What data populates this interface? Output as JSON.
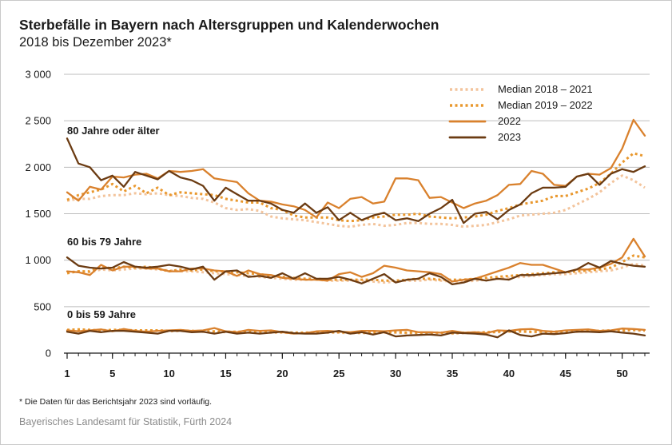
{
  "header": {
    "title": "Sterbefälle in Bayern nach Altersgruppen und Kalenderwochen",
    "subtitle": "2018 bis Dezember 2023*"
  },
  "footer": {
    "footnote": "* Die Daten für das Berichtsjahr 2023 sind vorläufig.",
    "source": "Bayerisches Landesamt für Statistik, Fürth 2024"
  },
  "colors": {
    "median_2018_2021": "#f3c49c",
    "median_2019_2022": "#e9982e",
    "y2022": "#d9812d",
    "y2023": "#6b3b12",
    "grid": "#bdbdbd",
    "axis": "#1a1a1a"
  },
  "chart_data": {
    "type": "line",
    "title": "Sterbefälle in Bayern nach Altersgruppen und Kalenderwochen",
    "subtitle": "2018 bis Dezember 2023*",
    "xlabel": "",
    "ylabel": "",
    "xlim": [
      1,
      52
    ],
    "ylim": [
      0,
      3000
    ],
    "x_tick_labels": [
      "1",
      "5",
      "10",
      "15",
      "20",
      "25",
      "30",
      "35",
      "40",
      "45",
      "50"
    ],
    "y_tick_labels": [
      "0",
      "500",
      "1 000",
      "1 500",
      "2 000",
      "2 500",
      "3 000"
    ],
    "grid": true,
    "legend_position": "top-right",
    "legend": [
      "Median 2018 – 2021",
      "Median 2019 – 2022",
      "2022",
      "2023"
    ],
    "groups": [
      {
        "label": "80 Jahre oder älter",
        "series": [
          {
            "name": "Median 2018 – 2021",
            "style": "dotted-light",
            "values": [
              1640,
              1660,
              1660,
              1690,
              1700,
              1700,
              1720,
              1710,
              1720,
              1700,
              1690,
              1670,
              1660,
              1620,
              1560,
              1540,
              1550,
              1530,
              1470,
              1450,
              1440,
              1430,
              1410,
              1390,
              1370,
              1360,
              1380,
              1390,
              1370,
              1380,
              1400,
              1400,
              1390,
              1390,
              1380,
              1360,
              1370,
              1380,
              1410,
              1440,
              1480,
              1490,
              1500,
              1510,
              1540,
              1600,
              1660,
              1730,
              1830,
              1910,
              1860,
              1780
            ]
          },
          {
            "name": "Median 2019 – 2022",
            "style": "dotted",
            "values": [
              1650,
              1700,
              1730,
              1760,
              1820,
              1740,
              1800,
              1720,
              1780,
              1700,
              1730,
              1720,
              1710,
              1700,
              1660,
              1640,
              1620,
              1620,
              1560,
              1540,
              1480,
              1460,
              1460,
              1460,
              1430,
              1420,
              1430,
              1460,
              1470,
              1490,
              1490,
              1500,
              1470,
              1460,
              1450,
              1460,
              1470,
              1490,
              1530,
              1560,
              1600,
              1620,
              1640,
              1690,
              1690,
              1730,
              1770,
              1830,
              1930,
              2050,
              2150,
              2120
            ]
          },
          {
            "name": "2022",
            "style": "solid",
            "values": [
              1730,
              1640,
              1790,
              1760,
              1900,
              1890,
              1920,
              1930,
              1880,
              1960,
              1950,
              1960,
              1980,
              1880,
              1860,
              1840,
              1720,
              1640,
              1630,
              1600,
              1580,
              1540,
              1460,
              1620,
              1560,
              1660,
              1680,
              1610,
              1630,
              1880,
              1880,
              1860,
              1670,
              1680,
              1620,
              1560,
              1610,
              1640,
              1700,
              1810,
              1820,
              1960,
              1930,
              1810,
              1800,
              1900,
              1930,
              1920,
              1990,
              2200,
              2510,
              2340
            ]
          },
          {
            "name": "2023",
            "style": "solid-dark",
            "values": [
              2310,
              2040,
              2000,
              1860,
              1910,
              1790,
              1950,
              1910,
              1870,
              1960,
              1890,
              1860,
              1800,
              1640,
              1780,
              1710,
              1640,
              1640,
              1610,
              1540,
              1510,
              1610,
              1510,
              1570,
              1430,
              1510,
              1430,
              1480,
              1510,
              1430,
              1450,
              1420,
              1500,
              1560,
              1650,
              1400,
              1500,
              1520,
              1440,
              1540,
              1600,
              1720,
              1780,
              1780,
              1790,
              1900,
              1930,
              1810,
              1930,
              1980,
              1950,
              2010
            ]
          }
        ]
      },
      {
        "label": "60 bis 79 Jahre",
        "series": [
          {
            "name": "Median 2018 – 2021",
            "style": "dotted-light",
            "values": [
              870,
              880,
              870,
              900,
              890,
              900,
              910,
              910,
              900,
              890,
              880,
              880,
              870,
              860,
              850,
              840,
              830,
              820,
              810,
              800,
              790,
              790,
              790,
              780,
              780,
              780,
              780,
              770,
              760,
              770,
              780,
              780,
              790,
              780,
              770,
              770,
              780,
              790,
              800,
              810,
              820,
              830,
              840,
              850,
              850,
              860,
              870,
              880,
              890,
              920,
              960,
              940
            ]
          },
          {
            "name": "Median 2019 – 2022",
            "style": "dotted",
            "values": [
              860,
              880,
              880,
              930,
              910,
              930,
              920,
              930,
              910,
              880,
              900,
              890,
              900,
              880,
              880,
              870,
              860,
              850,
              830,
              820,
              810,
              800,
              800,
              790,
              790,
              790,
              790,
              790,
              780,
              780,
              790,
              800,
              800,
              790,
              790,
              790,
              800,
              810,
              820,
              830,
              840,
              850,
              860,
              870,
              870,
              880,
              890,
              900,
              920,
              980,
              1050,
              1030
            ]
          },
          {
            "name": "2022",
            "style": "solid",
            "values": [
              880,
              870,
              840,
              950,
              890,
              930,
              930,
              910,
              910,
              880,
              880,
              910,
              910,
              890,
              880,
              830,
              890,
              850,
              840,
              810,
              800,
              790,
              790,
              780,
              850,
              870,
              820,
              860,
              940,
              920,
              890,
              880,
              870,
              850,
              770,
              790,
              800,
              840,
              880,
              920,
              970,
              950,
              950,
              910,
              870,
              900,
              900,
              920,
              960,
              1030,
              1230,
              1040
            ]
          },
          {
            "name": "2023",
            "style": "solid-dark",
            "values": [
              1030,
              940,
              920,
              910,
              920,
              980,
              930,
              920,
              930,
              950,
              930,
              900,
              930,
              790,
              880,
              890,
              820,
              830,
              810,
              860,
              800,
              860,
              800,
              800,
              820,
              790,
              750,
              800,
              850,
              760,
              790,
              800,
              860,
              820,
              740,
              760,
              800,
              780,
              800,
              790,
              840,
              840,
              850,
              860,
              870,
              900,
              970,
              920,
              990,
              960,
              940,
              930
            ]
          }
        ]
      },
      {
        "label": "0 bis 59 Jahre",
        "series": [
          {
            "name": "Median 2018 – 2021",
            "style": "dotted-light",
            "values": [
              245,
              250,
              245,
              240,
              245,
              245,
              240,
              240,
              240,
              235,
              240,
              235,
              230,
              230,
              225,
              225,
              225,
              220,
              220,
              220,
              215,
              215,
              220,
              220,
              220,
              215,
              215,
              215,
              220,
              220,
              215,
              215,
              215,
              215,
              210,
              215,
              215,
              220,
              225,
              230,
              230,
              225,
              225,
              225,
              230,
              230,
              235,
              235,
              240,
              240,
              245,
              240
            ]
          },
          {
            "name": "Median 2019 – 2022",
            "style": "dotted",
            "values": [
              250,
              255,
              250,
              245,
              250,
              250,
              245,
              245,
              245,
              240,
              245,
              240,
              235,
              235,
              230,
              230,
              230,
              225,
              225,
              225,
              220,
              220,
              225,
              225,
              225,
              220,
              220,
              220,
              225,
              225,
              220,
              220,
              220,
              220,
              215,
              220,
              220,
              225,
              230,
              235,
              235,
              230,
              230,
              230,
              235,
              235,
              240,
              240,
              245,
              245,
              250,
              245
            ]
          },
          {
            "name": "2022",
            "style": "solid",
            "values": [
              245,
              235,
              245,
              255,
              235,
              260,
              240,
              230,
              240,
              245,
              250,
              240,
              245,
              270,
              235,
              225,
              250,
              240,
              245,
              225,
              210,
              215,
              235,
              240,
              230,
              225,
              240,
              240,
              235,
              245,
              250,
              225,
              225,
              220,
              240,
              220,
              225,
              215,
              245,
              240,
              255,
              260,
              240,
              230,
              245,
              250,
              255,
              240,
              245,
              265,
              260,
              250
            ]
          },
          {
            "name": "2023",
            "style": "solid-dark",
            "values": [
              230,
              210,
              240,
              225,
              240,
              240,
              230,
              220,
              210,
              240,
              240,
              225,
              230,
              210,
              230,
              210,
              220,
              210,
              220,
              230,
              215,
              210,
              210,
              220,
              240,
              210,
              225,
              200,
              225,
              180,
              190,
              195,
              200,
              190,
              220,
              215,
              210,
              200,
              170,
              245,
              195,
              180,
              210,
              205,
              215,
              230,
              230,
              225,
              235,
              220,
              210,
              190
            ]
          }
        ]
      }
    ]
  }
}
